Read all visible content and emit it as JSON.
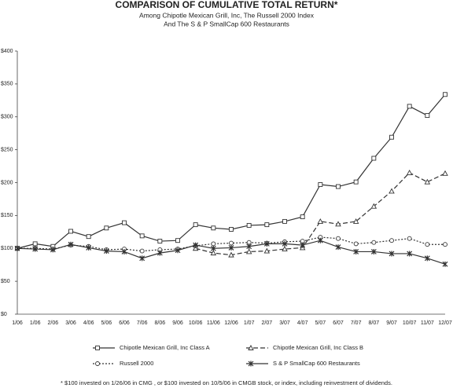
{
  "chart_data": {
    "type": "line",
    "title": "COMPARISON OF CUMULATIVE TOTAL RETURN*",
    "subtitle": [
      "Among Chipotle Mexican Grill, Inc, The Russell 2000 Index",
      "And The S & P SmallCap 600 Restaurants"
    ],
    "categories": [
      "1/06",
      "1/06",
      "2/06",
      "3/06",
      "4/06",
      "5/06",
      "6/06",
      "7/06",
      "8/06",
      "9/06",
      "10/06",
      "11/06",
      "12/06",
      "1/07",
      "2/07",
      "3/07",
      "4/07",
      "5/07",
      "6/07",
      "7/07",
      "8/07",
      "9/07",
      "10/07",
      "11/07",
      "12/07"
    ],
    "series": [
      {
        "name": "Chipotle Mexican Grill, Inc Class A",
        "color": "#333333",
        "marker": "square",
        "dash": "solid",
        "values": [
          100,
          107,
          103,
          126,
          118,
          131,
          139,
          119,
          111,
          112,
          136,
          131,
          129,
          135,
          136,
          141,
          148,
          197,
          194,
          201,
          237,
          269,
          316,
          302,
          334
        ]
      },
      {
        "name": "Chipotle Mexican Grill, Inc Class B",
        "color": "#333333",
        "marker": "triangle",
        "dash": "dashed",
        "values": [
          null,
          null,
          null,
          null,
          null,
          null,
          null,
          null,
          null,
          null,
          100,
          93,
          90,
          95,
          96,
          99,
          101,
          141,
          137,
          141,
          164,
          187,
          215,
          201,
          214
        ]
      },
      {
        "name": "Russell 2000",
        "color": "#333333",
        "marker": "circle",
        "dash": "dotted",
        "values": [
          100,
          100,
          99,
          105,
          103,
          98,
          99,
          96,
          98,
          99,
          104,
          107,
          108,
          109,
          108,
          110,
          111,
          117,
          115,
          107,
          109,
          112,
          115,
          106,
          106
        ]
      },
      {
        "name": "S & P SmallCap 600 Restaurants",
        "color": "#333333",
        "marker": "star",
        "dash": "solid",
        "values": [
          100,
          99,
          98,
          106,
          101,
          96,
          95,
          85,
          93,
          97,
          105,
          100,
          101,
          103,
          107,
          107,
          105,
          112,
          102,
          95,
          95,
          92,
          92,
          85,
          76
        ]
      }
    ],
    "ylim": [
      0,
      400
    ],
    "yticks": [
      {
        "value": 0,
        "label": "$0"
      },
      {
        "value": 50,
        "label": "$50"
      },
      {
        "value": 100,
        "label": "$100"
      },
      {
        "value": 150,
        "label": "$150"
      },
      {
        "value": 200,
        "label": "$200"
      },
      {
        "value": 250,
        "label": "$250"
      },
      {
        "value": 300,
        "label": "$300"
      },
      {
        "value": 350,
        "label": "$350"
      },
      {
        "value": 400,
        "label": "$400"
      }
    ],
    "grid": false,
    "legend": "bottom",
    "footnote": "* $100 invested on 1/26/06 in CMG , or $100 invested on 10/5/06 in CMGB stock, or index, including reinvestment of dividends."
  }
}
